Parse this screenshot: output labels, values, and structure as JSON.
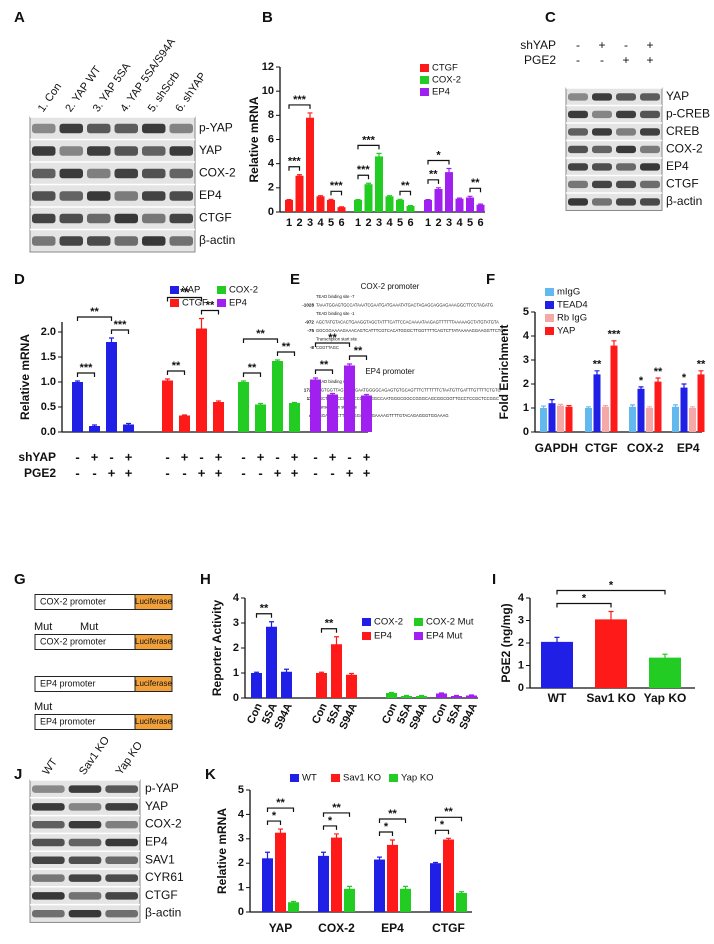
{
  "panel_letters": [
    "A",
    "B",
    "C",
    "D",
    "E",
    "F",
    "G",
    "H",
    "I",
    "J",
    "K"
  ],
  "blots": [
    {
      "lanes": [
        "1. Con",
        "2. YAP WT",
        "3. YAP 5SA",
        "4. YAP 5SA/S94A",
        "5. shScrb",
        "6. shYAP"
      ],
      "rows": [
        "p-YAP",
        "YAP",
        "COX-2",
        "EP4",
        "CTGF",
        "β-actin"
      ]
    },
    {
      "conditions": [
        {
          "label": "shYAP",
          "signs": [
            "-",
            "+",
            "-",
            "+"
          ]
        },
        {
          "label": "PGE2",
          "signs": [
            "-",
            "-",
            "+",
            "+"
          ]
        }
      ],
      "rows": [
        "YAP",
        "p-CREB",
        "CREB",
        "COX-2",
        "EP4",
        "CTGF",
        "β-actin"
      ]
    },
    {
      "lanes": [
        "WT",
        "Sav1 KO",
        "Yap KO"
      ],
      "rows": [
        "p-YAP",
        "YAP",
        "COX-2",
        "EP4",
        "SAV1",
        "CYR61",
        "CTGF",
        "β-actin"
      ]
    }
  ],
  "promoters": [
    {
      "title": "COX-2  promoter",
      "lines": [
        {
          "note": "TEAD binding site -7"
        },
        {
          "position": "-1028",
          "sequence": "TAAATGGAGTGCCATAAATCGAATGATGAAATATGACTAGAGCAGGAGAAAGGCTTCCTAGATG"
        },
        {
          "note": "TEAD binding site -1"
        },
        {
          "position": "-972",
          "sequence": "AGCTATGTACACTGAAGGTAGCTATTTCATTCCACAAAATAAGAGTTTTTTAAAAAGCTATGTATGTA"
        },
        {
          "position": "-75",
          "sequence": "GGCGGAAAAGAAACAGTCATTTCGTCACATGGGCTTGGTTTTCAGTCTTATAAAAAGGAAGGTTCTCT"
        },
        {
          "note": "Transcription start site"
        },
        {
          "position": "-8",
          "sequence": "CGGTTAGC"
        }
      ]
    },
    {
      "title": "EP4 promoter",
      "lines": [
        {
          "note": "TEAD binding site"
        },
        {
          "position": "1728",
          "sequence": "ATGTGGTTAGTGACGAATGGGGCAGAGTGTGCAGTTTCTTTTTTCTAATGTTGATTTGTTTTCTGTG"
        },
        {
          "position": "112",
          "sequence": "CGCTCGGCCCCTTCCGATCGGCCAATGGGCGGCCGGGCAGCGGCGGTTGCCTCCGCTCCGGC"
        },
        {
          "note": "Transcription start site"
        },
        {
          "position": "45",
          "sequence": "AGGAGAACTTGGAGGAGGAGAAAAGTTTTGTACAGAGGGTGGAAAG"
        }
      ]
    }
  ],
  "constructs": [
    {
      "mut": [],
      "promoter": "COX-2 promoter",
      "reporter": "Luciferase"
    },
    {
      "mut": [
        "Mut",
        "Mut"
      ],
      "promoter": "COX-2 promoter",
      "reporter": "Luciferase"
    },
    {
      "mut": [],
      "promoter": "EP4 promoter",
      "reporter": "Luciferase"
    },
    {
      "mut": [
        "Mut"
      ],
      "promoter": "EP4 promoter",
      "reporter": "Luciferase"
    }
  ],
  "chart_data": [
    {
      "type": "bar",
      "ylabel": "Relative mRNA",
      "categories": [
        "1",
        "2",
        "3",
        "4",
        "5",
        "6"
      ],
      "ylim": [
        0,
        12
      ],
      "yticks": [
        0,
        2,
        4,
        6,
        8,
        10,
        12
      ],
      "series": [
        {
          "name": "CTGF",
          "color": "#ff1a1a",
          "values": [
            1,
            3,
            7.8,
            1.3,
            1,
            0.4
          ],
          "errors": [
            0.03,
            0.08,
            0.4,
            0.05,
            0.05,
            0.03
          ]
        },
        {
          "name": "COX-2",
          "color": "#22cc22",
          "values": [
            1,
            2.3,
            4.6,
            1.3,
            1,
            0.5
          ],
          "errors": [
            0.03,
            0.08,
            0.25,
            0.05,
            0.05,
            0.03
          ]
        },
        {
          "name": "EP4",
          "color": "#a020f0",
          "values": [
            1,
            1.9,
            3.3,
            1.1,
            1.2,
            0.6
          ],
          "errors": [
            0.03,
            0.1,
            0.3,
            0.05,
            0.1,
            0.05
          ]
        }
      ],
      "brackets": [
        [
          "***",
          "***",
          "***"
        ],
        [
          "***",
          "***",
          "**"
        ],
        [
          "*",
          "**",
          "**"
        ]
      ]
    },
    {
      "type": "bar",
      "ylabel": "Relative mRNA",
      "ylim": [
        0,
        2.2
      ],
      "yticks": [
        {
          "value": 0,
          "label": "0.0"
        },
        {
          "value": 0.5,
          "label": "0.5"
        },
        {
          "value": 1,
          "label": "1.0"
        },
        {
          "value": 1.5,
          "label": "1.5"
        },
        {
          "value": 2,
          "label": "2.0"
        }
      ],
      "conditions": [
        {
          "label": "shYAP",
          "signs": [
            "-",
            "+",
            "-",
            "+"
          ]
        },
        {
          "label": "PGE2",
          "signs": [
            "-",
            "-",
            "+",
            "+"
          ]
        }
      ],
      "series": [
        {
          "name": "YAP",
          "color": "#1f1fe6",
          "values": [
            1,
            0.12,
            1.8,
            0.15
          ],
          "errors": [
            0.02,
            0.02,
            0.08,
            0.02
          ]
        },
        {
          "name": "CTGF",
          "color": "#ff1a1a",
          "values": [
            1.03,
            0.33,
            2.07,
            0.6
          ],
          "errors": [
            0.03,
            0.01,
            0.2,
            0.02
          ]
        },
        {
          "name": "COX-2",
          "color": "#22cc22",
          "values": [
            1,
            0.55,
            1.42,
            0.58
          ],
          "errors": [
            0.02,
            0.02,
            0.02,
            0.01
          ]
        },
        {
          "name": "EP4",
          "color": "#a020f0",
          "values": [
            1.05,
            0.75,
            1.33,
            0.73
          ],
          "errors": [
            0.03,
            0.02,
            0.03,
            0.02
          ]
        }
      ],
      "brackets": [
        [
          "***",
          "**",
          "***"
        ],
        [
          "**",
          "**",
          "**"
        ],
        [
          "**",
          "**",
          "**"
        ],
        [
          "**",
          "**",
          "**"
        ]
      ]
    },
    {
      "type": "bar",
      "ylabel": "Fold Enrichment",
      "categories": [
        "GAPDH",
        "CTGF",
        "COX-2",
        "EP4"
      ],
      "ylim": [
        0,
        5
      ],
      "yticks": [
        0,
        1,
        2,
        3,
        4,
        5
      ],
      "series": [
        {
          "name": "mIgG",
          "color": "#63b8ee",
          "values": [
            1,
            1,
            1.05,
            1.05
          ],
          "errors": [
            0.08,
            0.05,
            0.08,
            0.08
          ]
        },
        {
          "name": "TEAD4",
          "color": "#1f1fe6",
          "values": [
            1.2,
            2.4,
            1.8,
            1.85
          ],
          "errors": [
            0.15,
            0.15,
            0.08,
            0.15
          ],
          "labels": [
            null,
            "**",
            "*",
            "*"
          ]
        },
        {
          "name": "Rb IgG",
          "color": "#f4a8a8",
          "values": [
            1.1,
            1.05,
            1,
            1
          ],
          "errors": [
            0.05,
            0.05,
            0.05,
            0.05
          ]
        },
        {
          "name": "YAP",
          "color": "#ff1a1a",
          "values": [
            1.05,
            3.6,
            2.1,
            2.4
          ],
          "errors": [
            0.05,
            0.2,
            0.15,
            0.15
          ],
          "labels": [
            null,
            "***",
            "**",
            "**"
          ]
        }
      ]
    },
    {
      "type": "bar",
      "ylabel": "Reporter Activity",
      "categories": [
        "Con",
        "5SA",
        "S94A"
      ],
      "ylim": [
        0,
        4
      ],
      "yticks": [
        0,
        1,
        2,
        3,
        4
      ],
      "series": [
        {
          "name": "COX-2",
          "color": "#1f1fe6",
          "values": [
            1,
            2.85,
            1.05
          ],
          "errors": [
            0.03,
            0.2,
            0.1
          ]
        },
        {
          "name": "EP4",
          "color": "#ff1a1a",
          "values": [
            1,
            2.15,
            0.93
          ],
          "errors": [
            0.03,
            0.3,
            0.05
          ]
        },
        {
          "name": "COX-2 Mut",
          "color": "#22cc22",
          "values": [
            0.2,
            0.08,
            0.08
          ],
          "errors": [
            0.02,
            0.02,
            0.02
          ]
        },
        {
          "name": "EP4 Mut",
          "color": "#a020f0",
          "values": [
            0.18,
            0.08,
            0.1
          ],
          "errors": [
            0.02,
            0.02,
            0.02
          ]
        }
      ],
      "brackets": [
        [
          "**"
        ],
        [
          "**"
        ],
        [],
        []
      ]
    },
    {
      "type": "bar",
      "ylabel": "PGE2 (ng/mg)",
      "categories": [
        "WT",
        "Sav1 KO",
        "Yap KO"
      ],
      "ylim": [
        0,
        4
      ],
      "yticks": [
        0,
        1,
        2,
        3,
        4
      ],
      "values": [
        2.05,
        3.05,
        1.35
      ],
      "errors": [
        0.2,
        0.35,
        0.15
      ],
      "colors": [
        "#1f1fe6",
        "#ff1a1a",
        "#22cc22"
      ],
      "brackets": [
        [
          "*",
          "*"
        ]
      ]
    },
    {
      "type": "bar",
      "ylabel": "Relative mRNA",
      "categories": [
        "YAP",
        "COX-2",
        "EP4",
        "CTGF"
      ],
      "ylim": [
        0,
        5
      ],
      "yticks": [
        0,
        1,
        2,
        3,
        4,
        5
      ],
      "series": [
        {
          "name": "WT",
          "color": "#1f1fe6",
          "values": [
            2.2,
            2.3,
            2.15,
            2
          ],
          "errors": [
            0.25,
            0.15,
            0.1,
            0.03
          ]
        },
        {
          "name": "Sav1 KO",
          "color": "#ff1a1a",
          "values": [
            3.25,
            3.05,
            2.75,
            2.97
          ],
          "errors": [
            0.15,
            0.15,
            0.2,
            0.05
          ]
        },
        {
          "name": "Yap KO",
          "color": "#22cc22",
          "values": [
            0.4,
            0.95,
            0.95,
            0.78
          ],
          "errors": [
            0.03,
            0.1,
            0.1,
            0.05
          ]
        }
      ],
      "brackets": [
        [
          "*",
          "**"
        ],
        [
          "*",
          "**"
        ],
        [
          "*",
          "**"
        ],
        [
          "*",
          "**"
        ]
      ]
    }
  ]
}
